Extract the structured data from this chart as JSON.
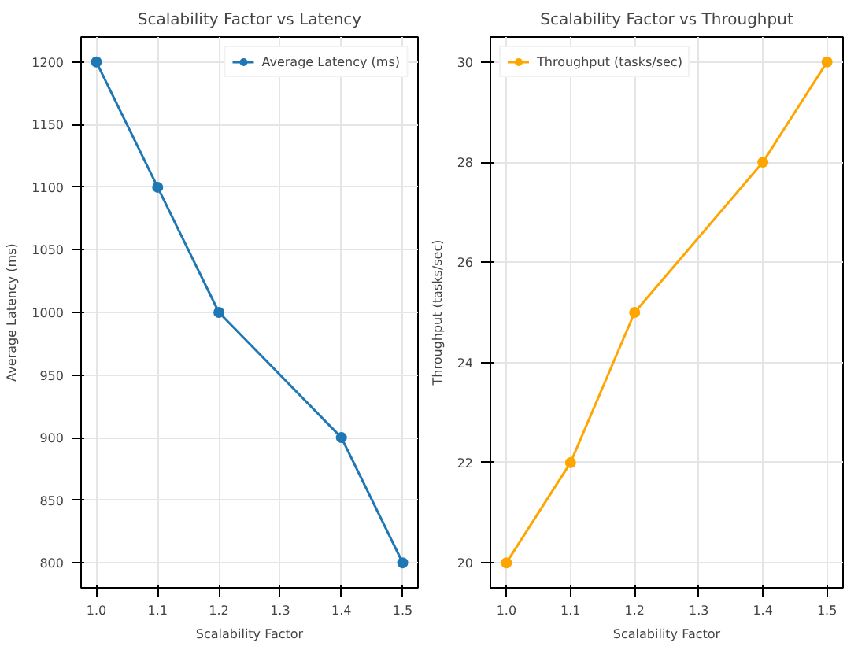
{
  "chart_data": [
    {
      "type": "line",
      "title": "Scalability Factor vs Latency",
      "xlabel": "Scalability Factor",
      "ylabel": "Average Latency (ms)",
      "x": [
        1.0,
        1.1,
        1.2,
        1.4,
        1.5
      ],
      "series": [
        {
          "name": "Average Latency (ms)",
          "color": "#1f77b4",
          "values": [
            1200,
            1100,
            1000,
            900,
            800
          ]
        }
      ],
      "xlim": [
        0.975,
        1.525
      ],
      "xticks": [
        {
          "value": 1.0,
          "label": "1.0"
        },
        1.1,
        1.2,
        1.3,
        1.4,
        1.5
      ],
      "ylim": [
        780,
        1220
      ],
      "yticks": [
        800,
        850,
        900,
        950,
        1000,
        1050,
        1100,
        1150,
        1200
      ],
      "grid": true,
      "legend": "top right",
      "marker": "circle",
      "line_style": "solid"
    },
    {
      "type": "line",
      "title": "Scalability Factor vs Throughput",
      "xlabel": "Scalability Factor",
      "ylabel": "Throughput (tasks/sec)",
      "x": [
        1.0,
        1.1,
        1.2,
        1.4,
        1.5
      ],
      "series": [
        {
          "name": "Throughput (tasks/sec)",
          "color": "#ffa500",
          "values": [
            20,
            22,
            25,
            28,
            30
          ]
        }
      ],
      "xlim": [
        0.975,
        1.525
      ],
      "xticks": [
        {
          "value": 1.0,
          "label": "1.0"
        },
        1.1,
        1.2,
        1.3,
        1.4,
        1.5
      ],
      "ylim": [
        19.5,
        30.5
      ],
      "yticks": [
        20,
        22,
        24,
        26,
        28,
        30
      ],
      "grid": true,
      "legend": "top left",
      "marker": "circle",
      "line_style": "solid"
    }
  ]
}
